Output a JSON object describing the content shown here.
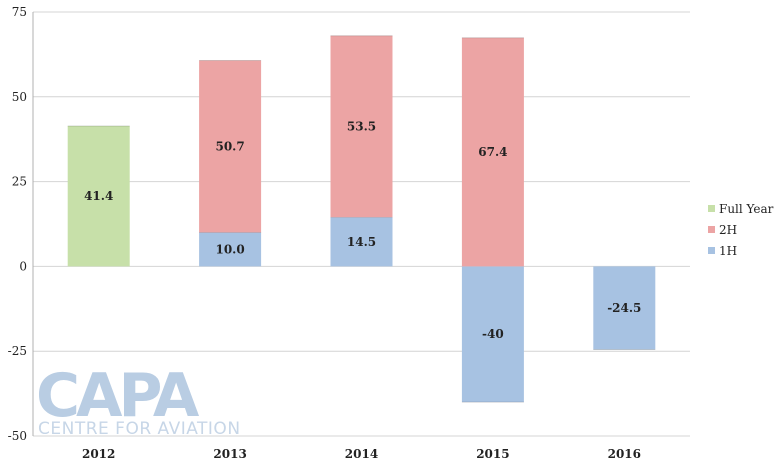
{
  "chart_data": {
    "type": "bar",
    "stacked": true,
    "categories": [
      "2012",
      "2013",
      "2014",
      "2015",
      "2016"
    ],
    "ylim": [
      -50,
      75
    ],
    "yticks": [
      75,
      50,
      25,
      0,
      -25,
      -50
    ],
    "grid": true,
    "legend_position": "right",
    "series": [
      {
        "name": "1H",
        "color": "#a7c2e2",
        "values": [
          null,
          10.0,
          14.5,
          -40,
          -24.5
        ],
        "labels": [
          "",
          "10.0",
          "14.5",
          "-40",
          "-24.5"
        ]
      },
      {
        "name": "2H",
        "color": "#eca4a4",
        "values": [
          null,
          50.7,
          53.5,
          67.4,
          null
        ],
        "labels": [
          "",
          "50.7",
          "53.5",
          "67.4",
          ""
        ]
      },
      {
        "name": "Full Year",
        "color": "#c7e0a9",
        "values": [
          41.4,
          null,
          null,
          null,
          null
        ],
        "labels": [
          "41.4",
          "",
          "",
          "",
          ""
        ]
      }
    ],
    "legend_order": [
      "Full Year",
      "2H",
      "1H"
    ]
  },
  "watermark": {
    "brand": "CAPA",
    "tagline": "CENTRE FOR AVIATION"
  }
}
